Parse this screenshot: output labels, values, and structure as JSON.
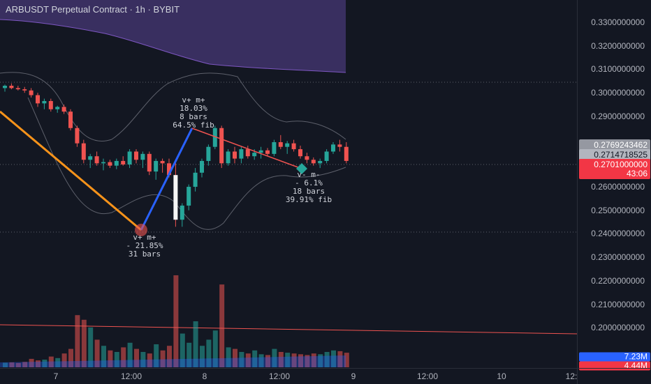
{
  "header": {
    "title": "ARBUSDT Perpetual Contract · 1h · BYBIT"
  },
  "price_axis": {
    "ticks": [
      {
        "label": "0.3300000000",
        "value": 0.33
      },
      {
        "label": "0.3200000000",
        "value": 0.32
      },
      {
        "label": "0.3100000000",
        "value": 0.31
      },
      {
        "label": "0.3000000000",
        "value": 0.3
      },
      {
        "label": "0.2900000000",
        "value": 0.29
      },
      {
        "label": "0.2600000000",
        "value": 0.26
      },
      {
        "label": "0.2500000000",
        "value": 0.25
      },
      {
        "label": "0.2400000000",
        "value": 0.24
      },
      {
        "label": "0.2300000000",
        "value": 0.23
      },
      {
        "label": "0.2200000000",
        "value": 0.22
      },
      {
        "label": "0.2100000000",
        "value": 0.21
      },
      {
        "label": "0.2000000000",
        "value": 0.2
      }
    ],
    "tags": [
      {
        "label": "0.2769243462",
        "value": 0.2769,
        "bg": "#9598a1",
        "color": "#ffffff"
      },
      {
        "label": "0.2714718525",
        "value": 0.2715,
        "bg": "#b2b5be",
        "color": "#131722"
      },
      {
        "label": "0.2701000000",
        "value": 0.2701,
        "bg": "#f23645",
        "color": "#ffffff"
      },
      {
        "label": "43:06",
        "value": 0.2686,
        "bg": "#f23645",
        "color": "#ffffff"
      }
    ],
    "volume_tags": [
      {
        "label": "7.23M",
        "bg": "#2962ff",
        "color": "#ffffff"
      },
      {
        "label": "4.44M",
        "bg": "#f23645",
        "color": "#ffffff"
      }
    ]
  },
  "time_axis": {
    "ticks": [
      {
        "label": "7",
        "key": "7"
      },
      {
        "label": "12:00",
        "key": "12a"
      },
      {
        "label": "8",
        "key": "8"
      },
      {
        "label": "12:00",
        "key": "12b"
      },
      {
        "label": "9",
        "key": "9"
      },
      {
        "label": "12:00",
        "key": "12c"
      },
      {
        "label": "10",
        "key": "10"
      },
      {
        "label": "12:",
        "key": "12d"
      }
    ]
  },
  "annotations": [
    {
      "text": "v+ m+\n18.03%\n8 bars\n64.5% fib",
      "key": "a1"
    },
    {
      "text": "v+ m+\n- 21.85%\n31 bars",
      "key": "a2"
    },
    {
      "text": "v- m-\n- 6.1%\n18 bars\n39.91% fib",
      "key": "a3"
    }
  ],
  "colors": {
    "background": "#131722",
    "up": "#26a69a",
    "down": "#ef5350",
    "wave_down": "#f7931a",
    "wave_up": "#2962ff",
    "wave_side": "#ef5350"
  },
  "chart_data": {
    "type": "candlestick",
    "title": "ARBUSDT Perpetual Contract · 1h · BYBIT",
    "candles": [
      [
        0.302,
        0.3035,
        0.3005,
        0.303
      ],
      [
        0.303,
        0.304,
        0.3015,
        0.302
      ],
      [
        0.302,
        0.303,
        0.301,
        0.3015
      ],
      [
        0.3015,
        0.3025,
        0.3,
        0.301
      ],
      [
        0.301,
        0.302,
        0.298,
        0.299
      ],
      [
        0.299,
        0.3,
        0.294,
        0.2955
      ],
      [
        0.2955,
        0.2975,
        0.293,
        0.2965
      ],
      [
        0.2965,
        0.2975,
        0.292,
        0.293
      ],
      [
        0.293,
        0.2945,
        0.2915,
        0.294
      ],
      [
        0.294,
        0.295,
        0.291,
        0.292
      ],
      [
        0.292,
        0.293,
        0.284,
        0.285
      ],
      [
        0.285,
        0.286,
        0.277,
        0.2785
      ],
      [
        0.2785,
        0.28,
        0.27,
        0.2715
      ],
      [
        0.2715,
        0.274,
        0.268,
        0.273
      ],
      [
        0.273,
        0.275,
        0.269,
        0.27
      ],
      [
        0.27,
        0.272,
        0.267,
        0.2705
      ],
      [
        0.2705,
        0.2715,
        0.268,
        0.269
      ],
      [
        0.269,
        0.272,
        0.2675,
        0.271
      ],
      [
        0.271,
        0.273,
        0.269,
        0.2695
      ],
      [
        0.2695,
        0.276,
        0.268,
        0.275
      ],
      [
        0.275,
        0.276,
        0.27,
        0.2715
      ],
      [
        0.2715,
        0.275,
        0.268,
        0.274
      ],
      [
        0.274,
        0.275,
        0.265,
        0.2665
      ],
      [
        0.2665,
        0.272,
        0.263,
        0.271
      ],
      [
        0.271,
        0.272,
        0.266,
        0.27
      ],
      [
        0.27,
        0.272,
        0.264,
        0.265
      ],
      [
        0.265,
        0.27,
        0.243,
        0.246
      ],
      [
        0.246,
        0.253,
        0.243,
        0.252
      ],
      [
        0.252,
        0.261,
        0.25,
        0.26
      ],
      [
        0.26,
        0.268,
        0.258,
        0.266
      ],
      [
        0.266,
        0.272,
        0.264,
        0.271
      ],
      [
        0.271,
        0.278,
        0.269,
        0.277
      ],
      [
        0.277,
        0.286,
        0.276,
        0.285
      ],
      [
        0.285,
        0.286,
        0.268,
        0.27
      ],
      [
        0.27,
        0.276,
        0.269,
        0.275
      ],
      [
        0.275,
        0.277,
        0.27,
        0.272
      ],
      [
        0.272,
        0.277,
        0.27,
        0.276
      ],
      [
        0.276,
        0.2775,
        0.272,
        0.273
      ],
      [
        0.273,
        0.276,
        0.2715,
        0.2745
      ],
      [
        0.2745,
        0.277,
        0.272,
        0.2755
      ],
      [
        0.2755,
        0.2765,
        0.273,
        0.274
      ],
      [
        0.274,
        0.28,
        0.273,
        0.279
      ],
      [
        0.279,
        0.282,
        0.276,
        0.277
      ],
      [
        0.277,
        0.2795,
        0.274,
        0.2785
      ],
      [
        0.2785,
        0.28,
        0.275,
        0.276
      ],
      [
        0.276,
        0.2775,
        0.272,
        0.273
      ],
      [
        0.273,
        0.2745,
        0.27,
        0.2715
      ],
      [
        0.2715,
        0.2725,
        0.269,
        0.27
      ],
      [
        0.27,
        0.272,
        0.268,
        0.271
      ],
      [
        0.271,
        0.276,
        0.27,
        0.275
      ],
      [
        0.275,
        0.279,
        0.274,
        0.278
      ],
      [
        0.278,
        0.28,
        0.275,
        0.277
      ],
      [
        0.277,
        0.279,
        0.27,
        0.271
      ]
    ],
    "volume": [
      0.3,
      0.32,
      0.28,
      0.35,
      0.55,
      0.45,
      0.5,
      0.7,
      0.6,
      0.9,
      1.2,
      3.4,
      3.1,
      2.6,
      1.8,
      1.4,
      1.1,
      1.0,
      1.3,
      1.6,
      1.2,
      1.0,
      0.9,
      1.5,
      1.1,
      1.4,
      6.0,
      2.2,
      1.6,
      3.0,
      1.4,
      1.8,
      2.4,
      5.4,
      1.3,
      1.2,
      1.0,
      0.9,
      1.1,
      0.85,
      0.8,
      1.2,
      1.0,
      0.95,
      0.9,
      0.85,
      0.8,
      0.9,
      0.85,
      1.0,
      1.1,
      1.05,
      0.95
    ],
    "ylim": [
      0.195,
      0.335
    ]
  }
}
